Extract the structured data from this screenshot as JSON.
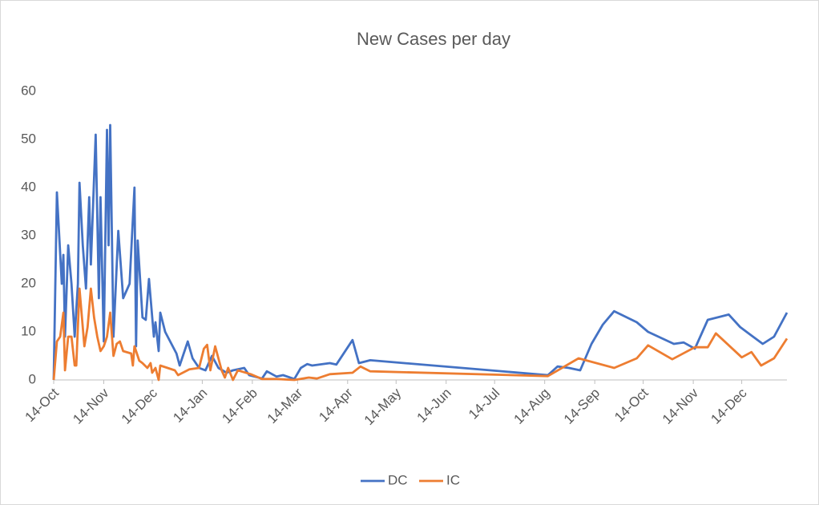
{
  "chart_data": {
    "type": "line",
    "title": "New Cases per day",
    "xlim": [
      "14-Oct",
      "11-Jan"
    ],
    "xticks": [
      "14-Oct",
      "14-Nov",
      "14-Dec",
      "14-Jan",
      "14-Feb",
      "14-Mar",
      "14-Apr",
      "14-May",
      "14-Jun",
      "14-Jul",
      "14-Aug",
      "14-Sep",
      "14-Oct",
      "14-Nov",
      "14-Dec"
    ],
    "ylim": [
      0,
      60
    ],
    "yticks": [
      0,
      10,
      20,
      30,
      40,
      50,
      60
    ],
    "grid": false,
    "legend": "bottom",
    "series": [
      {
        "name": "DC",
        "color": "#4472c4",
        "x": [
          "14-Oct",
          "16-Oct",
          "19-Oct",
          "20-Oct",
          "21-Oct",
          "23-Oct",
          "25-Oct",
          "27-Oct",
          "29-Oct",
          "30-Oct",
          "1-Nov",
          "3-Nov",
          "5-Nov",
          "6-Nov",
          "9-Nov",
          "11-Nov",
          "12-Nov",
          "14-Nov",
          "16-Nov",
          "17-Nov",
          "18-Nov",
          "20-Nov",
          "23-Nov",
          "26-Nov",
          "30-Nov",
          "3-Dec",
          "4-Dec",
          "5-Dec",
          "8-Dec",
          "10-Dec",
          "12-Dec",
          "15-Dec",
          "16-Dec",
          "18-Dec",
          "19-Dec",
          "22-Dec",
          "29-Dec",
          "31-Dec",
          "5-Jan",
          "8-Jan",
          "12-Jan",
          "16-Jan",
          "20-Jan",
          "24-Jan",
          "29-Jan",
          "2-Feb",
          "9-Feb",
          "12-Feb",
          "20-Feb",
          "23-Feb",
          "1-Mar",
          "5-Mar",
          "12-Mar",
          "16-Mar",
          "20-Mar",
          "23-Mar",
          "3-Apr",
          "7-Apr",
          "17-Apr",
          "21-Apr",
          "28-Apr",
          "16-Aug",
          "22-Aug",
          "29-Aug",
          "5-Sep",
          "12-Sep",
          "19-Sep",
          "26-Sep",
          "10-Oct",
          "17-Oct",
          "2-Nov",
          "8-Nov",
          "15-Nov",
          "23-Nov",
          "6-Dec",
          "13-Dec",
          "19-Dec",
          "27-Dec",
          "3-Jan",
          "11-Jan"
        ],
        "values": [
          0,
          39,
          20,
          26,
          9,
          28,
          20,
          9,
          20,
          41,
          28,
          19,
          38,
          24,
          51,
          17,
          38,
          8,
          52,
          28,
          53,
          9,
          31,
          17,
          20,
          40,
          7,
          29,
          13,
          12.5,
          21,
          9,
          12,
          6,
          14,
          10,
          5.5,
          3,
          8,
          4.5,
          2.5,
          2,
          5,
          2.5,
          1.5,
          2,
          2.5,
          1,
          0.3,
          1.8,
          0.7,
          1,
          0.2,
          2.5,
          3.3,
          3,
          3.5,
          3.2,
          8.3,
          3.5,
          4.1,
          1,
          2.8,
          2.5,
          2,
          7.5,
          11.5,
          14.3,
          12,
          10,
          7.5,
          7.8,
          6.5,
          12.5,
          13.6,
          11,
          9.5,
          7.5,
          9,
          14
        ]
      },
      {
        "name": "IC",
        "color": "#ed7d31",
        "x": [
          "14-Oct",
          "16-Oct",
          "18-Oct",
          "20-Oct",
          "21-Oct",
          "23-Oct",
          "25-Oct",
          "27-Oct",
          "28-Oct",
          "30-Oct",
          "2-Nov",
          "4-Nov",
          "6-Nov",
          "8-Nov",
          "10-Nov",
          "12-Nov",
          "14-Nov",
          "16-Nov",
          "18-Nov",
          "20-Nov",
          "22-Nov",
          "24-Nov",
          "26-Nov",
          "1-Dec",
          "2-Dec",
          "3-Dec",
          "6-Dec",
          "8-Dec",
          "11-Dec",
          "13-Dec",
          "14-Dec",
          "16-Dec",
          "18-Dec",
          "19-Dec",
          "28-Dec",
          "30-Dec",
          "6-Jan",
          "12-Jan",
          "15-Jan",
          "17-Jan",
          "19-Jan",
          "22-Jan",
          "26-Jan",
          "28-Jan",
          "30-Jan",
          "2-Feb",
          "5-Feb",
          "13-Feb",
          "20-Feb",
          "1-Mar",
          "12-Mar",
          "21-Mar",
          "26-Mar",
          "3-Apr",
          "17-Apr",
          "22-Apr",
          "28-Apr",
          "16-Aug",
          "4-Sep",
          "26-Sep",
          "10-Oct",
          "17-Oct",
          "1-Nov",
          "15-Nov",
          "23-Nov",
          "28-Nov",
          "14-Dec",
          "20-Dec",
          "26-Dec",
          "3-Jan",
          "11-Jan"
        ],
        "values": [
          0,
          8,
          9,
          14,
          2,
          9,
          9,
          3,
          3,
          19,
          7,
          11,
          19,
          13,
          9,
          6,
          7,
          9,
          14,
          5,
          7.5,
          8,
          6,
          5.5,
          3,
          7,
          4,
          3.5,
          2.5,
          3.5,
          1.5,
          2.5,
          0,
          3,
          2,
          1,
          2.2,
          2.5,
          6.5,
          7.3,
          2,
          7,
          2,
          0.5,
          2.5,
          0,
          2,
          1.2,
          0.2,
          0.2,
          0,
          0.5,
          0.3,
          1.2,
          1.5,
          2.8,
          1.8,
          0.8,
          4.5,
          2.5,
          4.5,
          7.2,
          4.3,
          6.8,
          6.8,
          9.7,
          4.7,
          5.8,
          3,
          4.5,
          8.6
        ]
      }
    ]
  }
}
